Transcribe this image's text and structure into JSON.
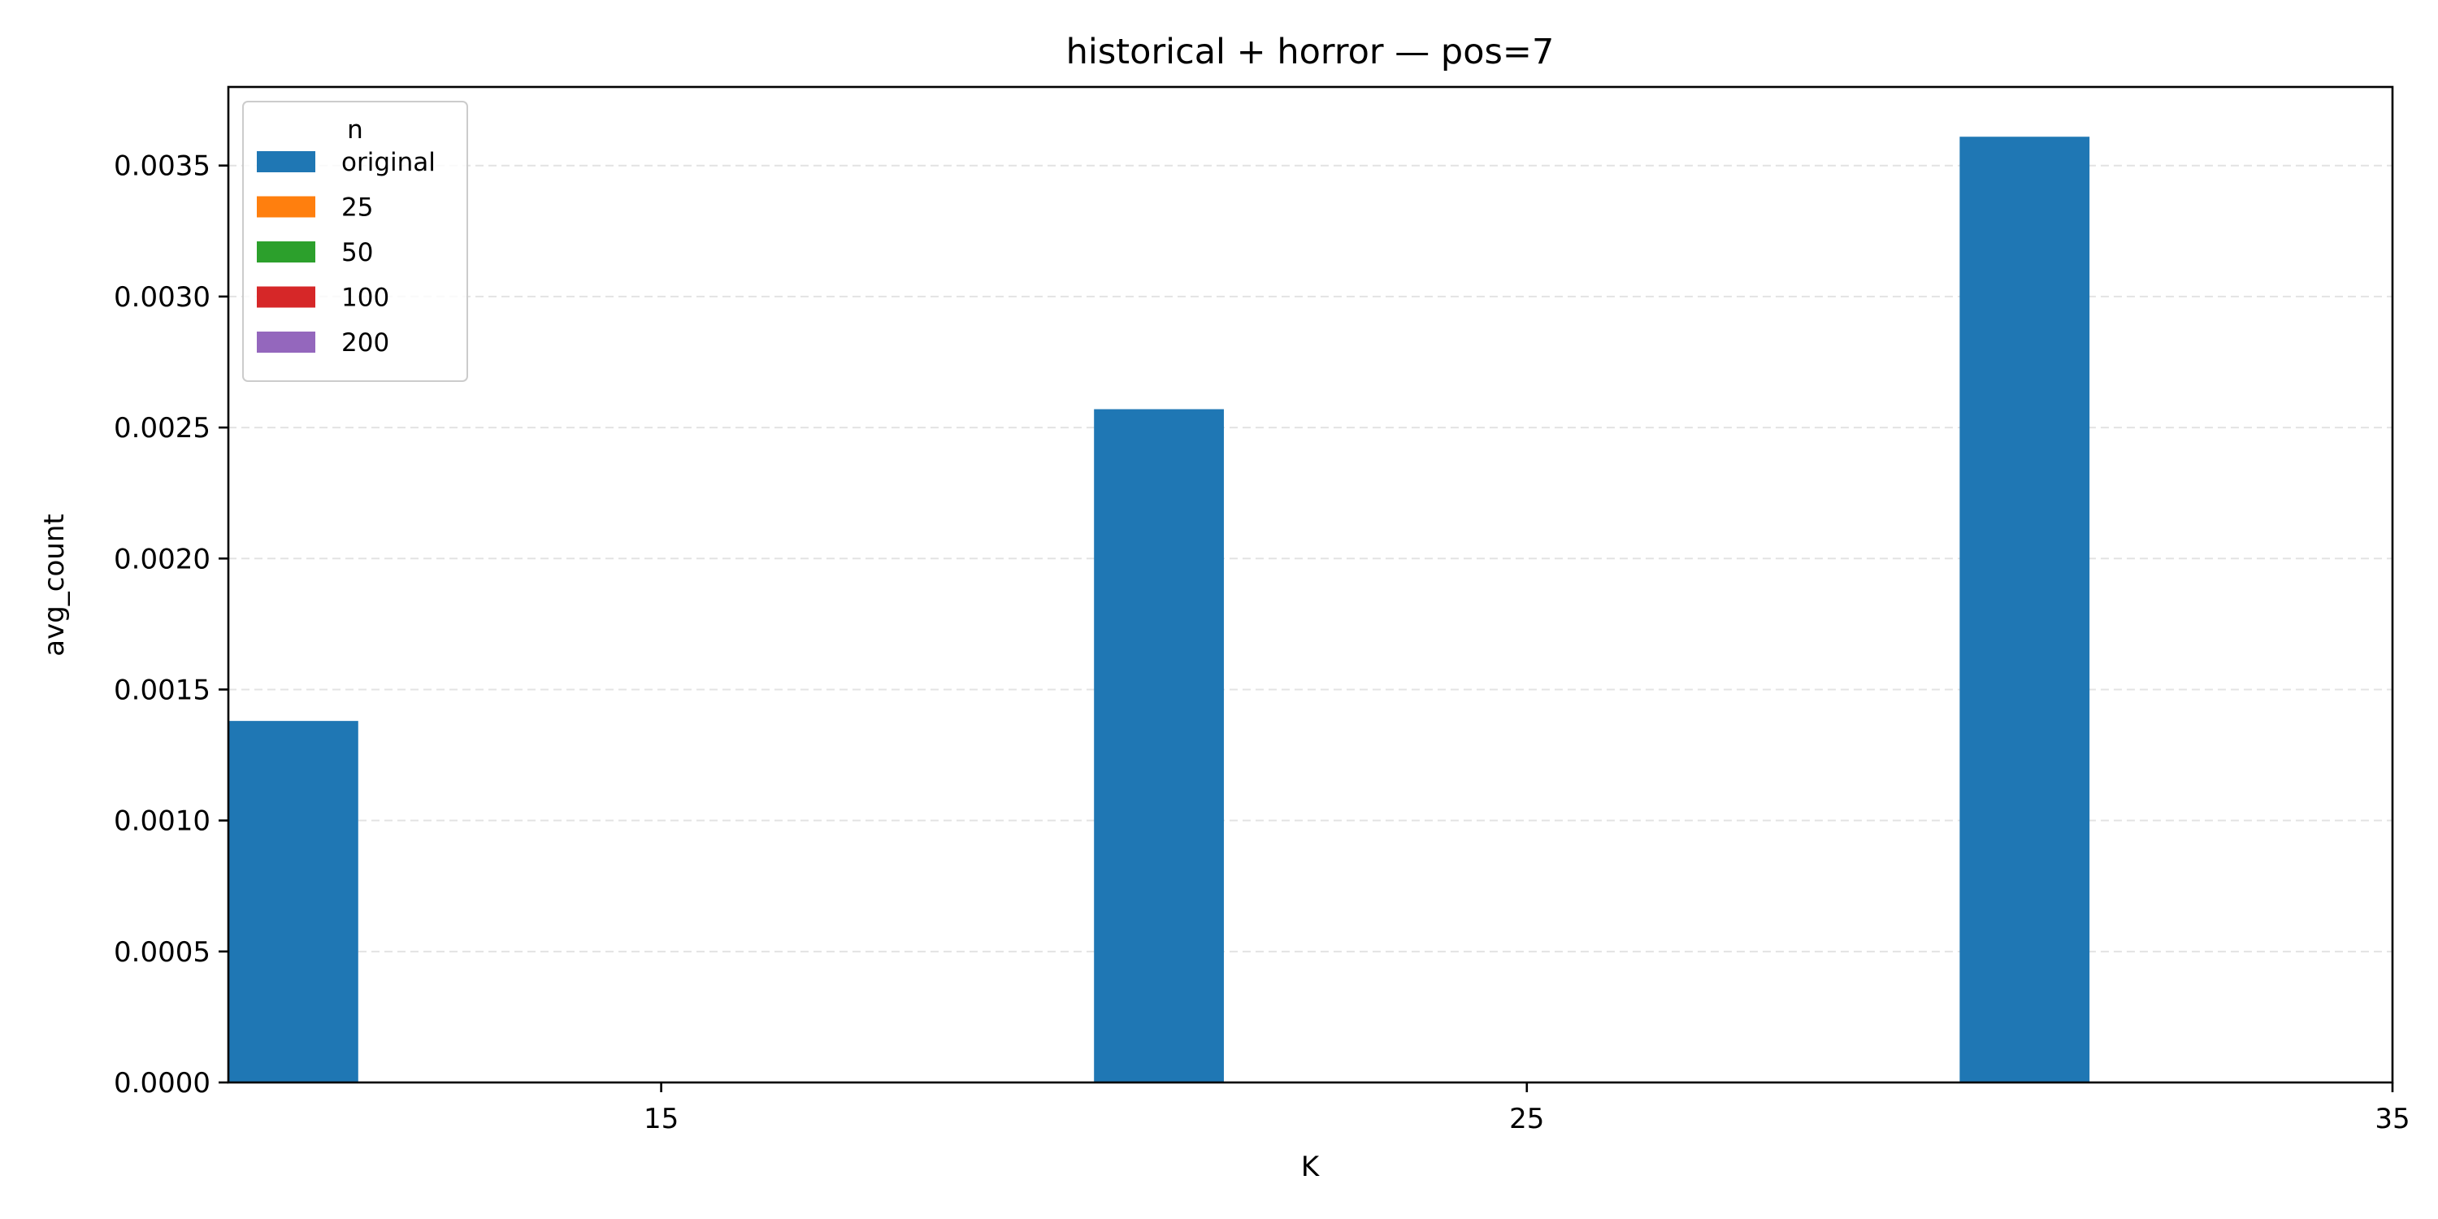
{
  "chart_data": {
    "type": "bar",
    "title": "historical + horror — pos=7",
    "xlabel": "K",
    "ylabel": "avg_count",
    "x_ticks": [
      "15",
      "25",
      "35"
    ],
    "x_range": [
      10,
      35
    ],
    "ylim": [
      0,
      0.0038
    ],
    "y_ticks": [
      "0.0000",
      "0.0005",
      "0.0010",
      "0.0015",
      "0.0020",
      "0.0025",
      "0.0030",
      "0.0035"
    ],
    "grid": "y-dashed",
    "legend": {
      "title": "n",
      "placement": "top-left"
    },
    "groups": [
      {
        "category": "15",
        "x": 15
      },
      {
        "category": "25",
        "x": 25
      },
      {
        "category": "35",
        "x": 35
      }
    ],
    "series": [
      {
        "name": "original",
        "color": "#1f77b4",
        "values": [
          0.00138,
          0.00257,
          0.00361
        ]
      },
      {
        "name": "25",
        "color": "#ff7f0e",
        "values": [
          0,
          0,
          0
        ]
      },
      {
        "name": "50",
        "color": "#2ca02c",
        "values": [
          0,
          0,
          0
        ]
      },
      {
        "name": "100",
        "color": "#d62728",
        "values": [
          0,
          0,
          0
        ]
      },
      {
        "name": "200",
        "color": "#9467bd",
        "values": [
          0,
          0,
          0
        ]
      }
    ]
  }
}
